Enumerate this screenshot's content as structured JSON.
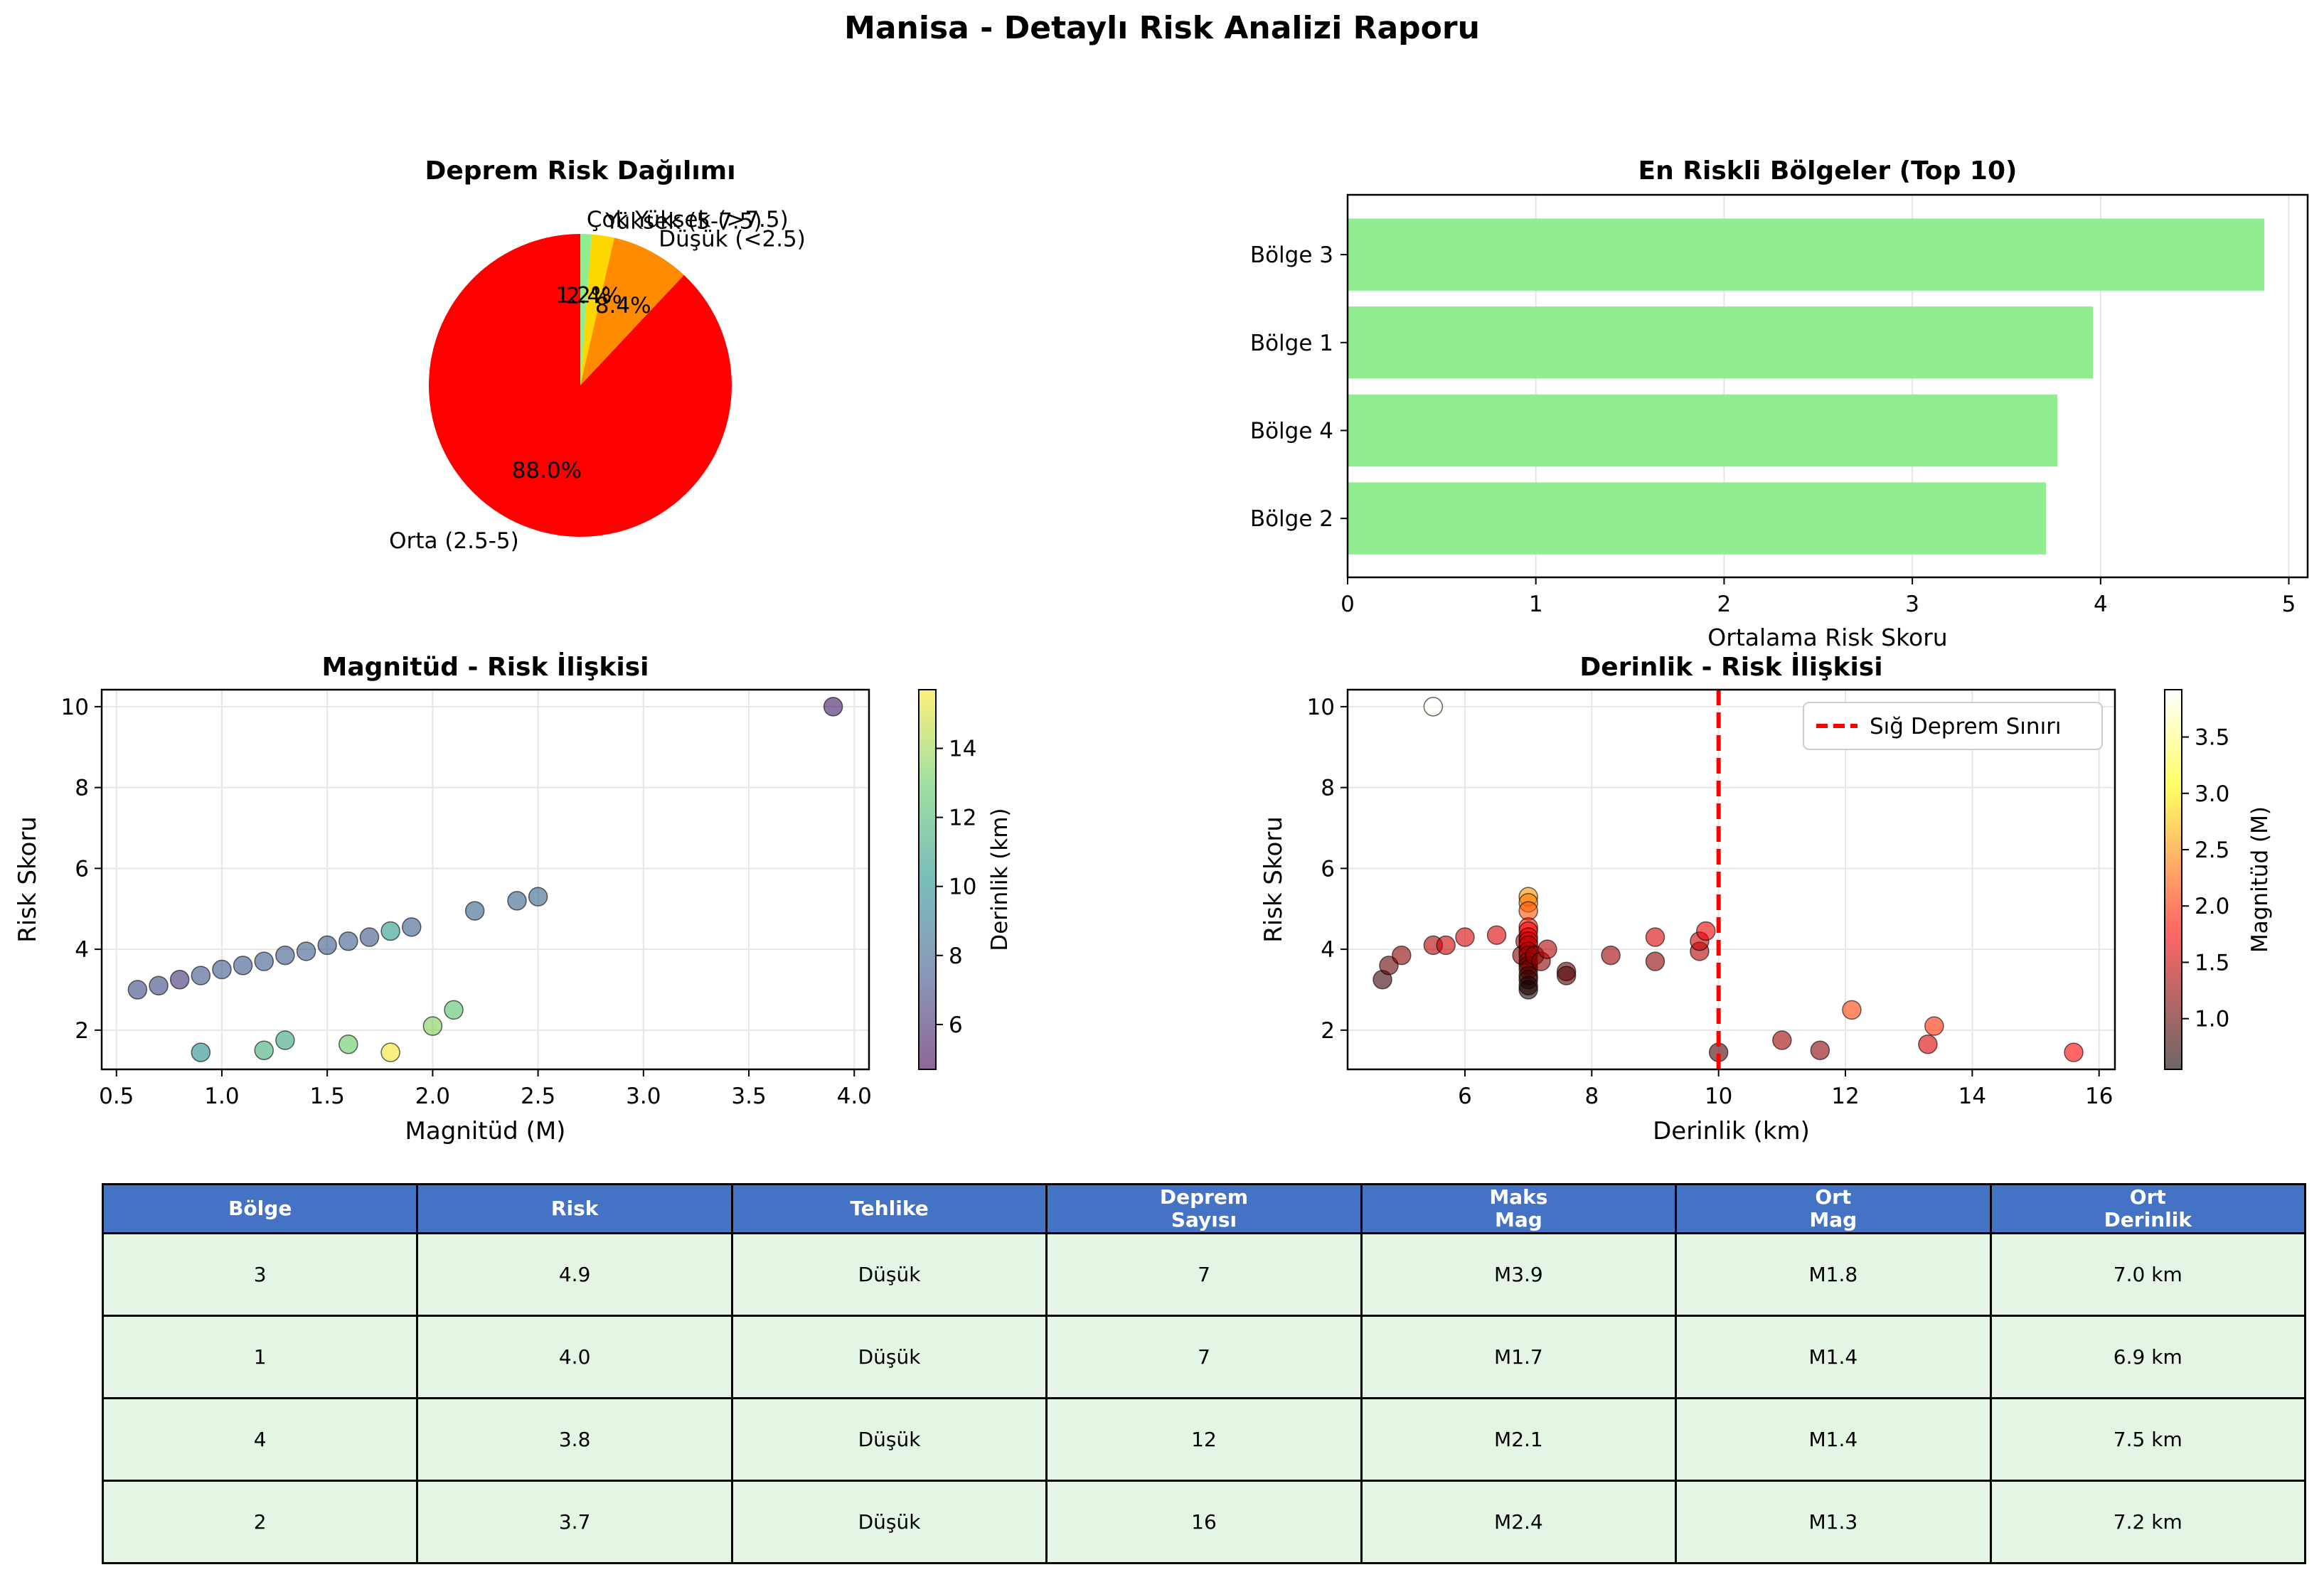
{
  "title": "Manisa - Detaylı Risk Analizi Raporu",
  "chart_data": [
    {
      "type": "pie",
      "title": "Deprem Risk Dağılımı",
      "labels": [
        "Orta (2.5-5)",
        "Düşük (<2.5)",
        "Yüksek (5-7.5)",
        "Çok Yüksek (>7.5)"
      ],
      "values": [
        88.0,
        8.4,
        2.4,
        1.2
      ],
      "pct_labels": [
        "88.0%",
        "8.4%",
        "2.4%",
        "1.2%"
      ],
      "colors": [
        "#ff0000",
        "#ff8c00",
        "#ffd700",
        "#90ee90"
      ]
    },
    {
      "type": "bar",
      "orientation": "horizontal",
      "title": "En Riskli Bölgeler (Top 10)",
      "categories": [
        "Bölge 3",
        "Bölge 1",
        "Bölge 4",
        "Bölge 2"
      ],
      "values": [
        4.87,
        3.96,
        3.77,
        3.71
      ],
      "xlabel": "Ortalama Risk Skoru",
      "xlim": [
        0,
        5.1
      ],
      "xticks": [
        0,
        1,
        2,
        3,
        4,
        5
      ],
      "color": "#90ee90",
      "grid": true
    },
    {
      "type": "scatter",
      "title": "Magnitüd - Risk İlişkisi",
      "xlabel": "Magnitüd (M)",
      "ylabel": "Risk Skoru",
      "xlim": [
        0.43,
        4.07
      ],
      "ylim": [
        1.03,
        10.42
      ],
      "xticks": [
        "0.5",
        "1.0",
        "1.5",
        "2.0",
        "2.5",
        "3.0",
        "3.5",
        "4.0"
      ],
      "yticks": [
        2,
        4,
        6,
        8,
        10
      ],
      "colorbar": {
        "label": "Derinlik (km)",
        "ticks": [
          6,
          8,
          10,
          12,
          14
        ],
        "range": [
          4.7,
          15.7
        ]
      },
      "points": [
        {
          "x": 0.6,
          "y": 3.0,
          "c": 7.0
        },
        {
          "x": 0.7,
          "y": 3.1,
          "c": 7.0
        },
        {
          "x": 0.8,
          "y": 3.25,
          "c": 6.2
        },
        {
          "x": 0.9,
          "y": 3.35,
          "c": 7.5
        },
        {
          "x": 1.0,
          "y": 3.5,
          "c": 7.6
        },
        {
          "x": 1.1,
          "y": 3.6,
          "c": 7.6
        },
        {
          "x": 1.2,
          "y": 3.7,
          "c": 7.7
        },
        {
          "x": 1.3,
          "y": 3.85,
          "c": 7.8
        },
        {
          "x": 1.4,
          "y": 3.95,
          "c": 7.9
        },
        {
          "x": 1.5,
          "y": 4.1,
          "c": 7.6
        },
        {
          "x": 1.6,
          "y": 4.2,
          "c": 7.9
        },
        {
          "x": 1.7,
          "y": 4.3,
          "c": 7.5
        },
        {
          "x": 1.8,
          "y": 4.45,
          "c": 10.5
        },
        {
          "x": 1.9,
          "y": 4.55,
          "c": 7.8
        },
        {
          "x": 2.2,
          "y": 4.95,
          "c": 8.0
        },
        {
          "x": 2.4,
          "y": 5.2,
          "c": 8.0
        },
        {
          "x": 2.5,
          "y": 5.3,
          "c": 8.2
        },
        {
          "x": 3.9,
          "y": 10.0,
          "c": 5.5
        },
        {
          "x": 0.9,
          "y": 1.45,
          "c": 10.0
        },
        {
          "x": 1.2,
          "y": 1.5,
          "c": 11.5
        },
        {
          "x": 1.3,
          "y": 1.75,
          "c": 11.0
        },
        {
          "x": 1.6,
          "y": 1.65,
          "c": 13.0
        },
        {
          "x": 1.8,
          "y": 1.45,
          "c": 15.5
        },
        {
          "x": 2.0,
          "y": 2.1,
          "c": 13.5
        },
        {
          "x": 2.1,
          "y": 2.5,
          "c": 12.5
        }
      ]
    },
    {
      "type": "scatter",
      "title": "Derinlik - Risk İlişkisi",
      "xlabel": "Derinlik (km)",
      "ylabel": "Risk Skoru",
      "xlim": [
        4.15,
        16.25
      ],
      "ylim": [
        1.03,
        10.42
      ],
      "xticks": [
        6,
        8,
        10,
        12,
        14,
        16
      ],
      "yticks": [
        2,
        4,
        6,
        8,
        10
      ],
      "reference_line": {
        "x": 10,
        "label": "Sığ Deprem Sınırı",
        "color": "#ff0000"
      },
      "colorbar": {
        "label": "Magnitüd (M)",
        "ticks": [
          "1.0",
          "1.5",
          "2.0",
          "2.5",
          "3.0",
          "3.5"
        ],
        "range": [
          0.55,
          3.92
        ]
      },
      "points": [
        {
          "x": 5.5,
          "y": 10.0,
          "c": 3.9
        },
        {
          "x": 4.7,
          "y": 3.25,
          "c": 0.8
        },
        {
          "x": 4.8,
          "y": 3.6,
          "c": 1.0
        },
        {
          "x": 5.0,
          "y": 3.85,
          "c": 1.2
        },
        {
          "x": 5.5,
          "y": 4.1,
          "c": 1.4
        },
        {
          "x": 5.7,
          "y": 4.1,
          "c": 1.5
        },
        {
          "x": 6.0,
          "y": 4.3,
          "c": 1.6
        },
        {
          "x": 6.5,
          "y": 4.35,
          "c": 1.6
        },
        {
          "x": 6.9,
          "y": 3.85,
          "c": 1.2
        },
        {
          "x": 6.95,
          "y": 4.2,
          "c": 1.4
        },
        {
          "x": 7.0,
          "y": 5.3,
          "c": 2.5
        },
        {
          "x": 7.0,
          "y": 5.15,
          "c": 2.4
        },
        {
          "x": 7.0,
          "y": 4.95,
          "c": 2.2
        },
        {
          "x": 7.0,
          "y": 4.55,
          "c": 1.9
        },
        {
          "x": 7.0,
          "y": 4.45,
          "c": 1.8
        },
        {
          "x": 7.0,
          "y": 4.3,
          "c": 1.7
        },
        {
          "x": 7.0,
          "y": 4.2,
          "c": 1.6
        },
        {
          "x": 7.0,
          "y": 4.1,
          "c": 1.5
        },
        {
          "x": 7.0,
          "y": 3.95,
          "c": 1.4
        },
        {
          "x": 7.0,
          "y": 3.85,
          "c": 1.3
        },
        {
          "x": 7.0,
          "y": 3.7,
          "c": 1.2
        },
        {
          "x": 7.0,
          "y": 3.6,
          "c": 1.1
        },
        {
          "x": 7.0,
          "y": 3.5,
          "c": 1.0
        },
        {
          "x": 7.0,
          "y": 3.35,
          "c": 0.9
        },
        {
          "x": 7.0,
          "y": 3.25,
          "c": 0.8
        },
        {
          "x": 7.0,
          "y": 3.1,
          "c": 0.7
        },
        {
          "x": 7.0,
          "y": 3.0,
          "c": 0.6
        },
        {
          "x": 7.1,
          "y": 3.85,
          "c": 1.3
        },
        {
          "x": 7.2,
          "y": 3.7,
          "c": 1.2
        },
        {
          "x": 7.3,
          "y": 4.0,
          "c": 1.4
        },
        {
          "x": 7.6,
          "y": 3.45,
          "c": 1.0
        },
        {
          "x": 7.6,
          "y": 3.35,
          "c": 0.9
        },
        {
          "x": 8.3,
          "y": 3.85,
          "c": 1.3
        },
        {
          "x": 9.0,
          "y": 4.3,
          "c": 1.6
        },
        {
          "x": 9.0,
          "y": 3.7,
          "c": 1.2
        },
        {
          "x": 9.7,
          "y": 3.95,
          "c": 1.4
        },
        {
          "x": 9.7,
          "y": 4.2,
          "c": 1.5
        },
        {
          "x": 9.8,
          "y": 4.45,
          "c": 1.7
        },
        {
          "x": 10.0,
          "y": 1.45,
          "c": 0.9
        },
        {
          "x": 11.0,
          "y": 1.75,
          "c": 1.3
        },
        {
          "x": 11.6,
          "y": 1.5,
          "c": 1.2
        },
        {
          "x": 12.1,
          "y": 2.5,
          "c": 2.1
        },
        {
          "x": 13.3,
          "y": 1.65,
          "c": 1.6
        },
        {
          "x": 13.4,
          "y": 2.1,
          "c": 2.0
        },
        {
          "x": 15.6,
          "y": 1.45,
          "c": 1.8
        }
      ]
    }
  ],
  "table": {
    "headers": [
      "Bölge",
      "Risk",
      "Tehlike",
      "Deprem\nSayısı",
      "Maks\nMag",
      "Ort\nMag",
      "Ort\nDerinlik"
    ],
    "rows": [
      [
        "3",
        "4.9",
        "Düşük",
        "7",
        "M3.9",
        "M1.8",
        "7.0 km"
      ],
      [
        "1",
        "4.0",
        "Düşük",
        "7",
        "M1.7",
        "M1.4",
        "6.9 km"
      ],
      [
        "4",
        "3.8",
        "Düşük",
        "12",
        "M2.1",
        "M1.4",
        "7.5 km"
      ],
      [
        "2",
        "3.7",
        "Düşük",
        "16",
        "M2.4",
        "M1.3",
        "7.2 km"
      ]
    ]
  }
}
